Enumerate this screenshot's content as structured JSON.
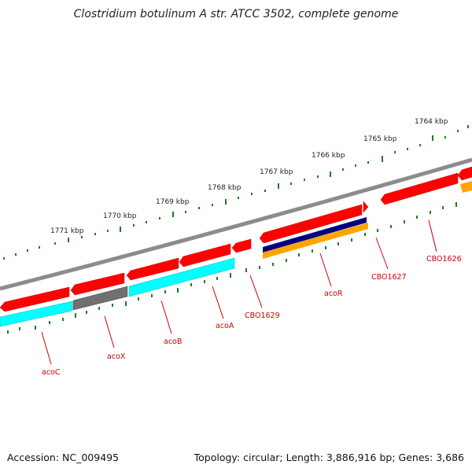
{
  "title": "Clostridium botulinum A str. ATCC 3502, complete genome",
  "footer": {
    "accession": "Accession: NC_009495",
    "summary": "Topology: circular; Length: 3,886,916 bp; Genes: 3,686"
  },
  "colors": {
    "gene_red": "#ff0000",
    "gene_cyan": "#00ffff",
    "gene_gray": "#707070",
    "gene_navy": "#000080",
    "gene_orange": "#ffa500",
    "backbone": "#8c8c8c",
    "ticks": "#1a7f1a",
    "label": "#cc0000"
  },
  "scale_labels": [
    "1764 kbp",
    "1765 kbp",
    "1766 kbp",
    "1767 kbp",
    "1768 kbp",
    "1769 kbp",
    "1770 kbp",
    "1771 kbp"
  ],
  "genes": [
    "CBO1626",
    "CBO1627",
    "acoR",
    "CBO1629",
    "acoA",
    "acoB",
    "acoX",
    "acoC"
  ]
}
